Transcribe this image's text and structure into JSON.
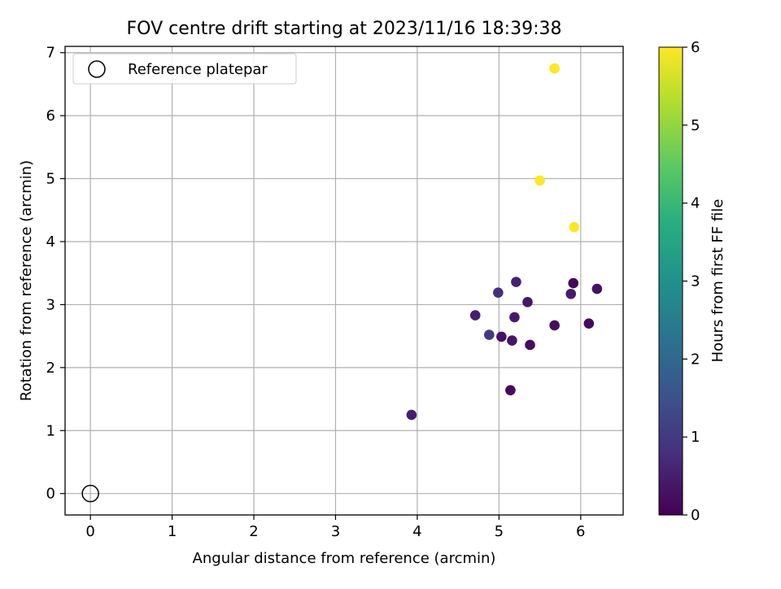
{
  "chart_data": {
    "type": "scatter",
    "title": "FOV centre drift starting at 2023/11/16 18:39:38",
    "xlabel": "Angular distance from reference (arcmin)",
    "ylabel": "Rotation from reference (arcmin)",
    "xlim": [
      -0.31,
      6.52
    ],
    "ylim": [
      -0.34,
      7.1
    ],
    "xticks": [
      0,
      1,
      2,
      3,
      4,
      5,
      6
    ],
    "yticks": [
      0,
      1,
      2,
      3,
      4,
      5,
      6,
      7
    ],
    "grid": true,
    "legend": {
      "position": "top-left",
      "entries": [
        "Reference platepar"
      ]
    },
    "reference": {
      "x": 0,
      "y": 0,
      "marker": "hollow-circle",
      "edge_color": "#000000"
    },
    "colorbar": {
      "label": "Hours from first FF file",
      "min": 0,
      "max": 6,
      "ticks": [
        0,
        1,
        2,
        3,
        4,
        5,
        6
      ],
      "colormap": "viridis"
    },
    "points": [
      {
        "x": 3.93,
        "y": 1.25,
        "hours": 0.5
      },
      {
        "x": 4.71,
        "y": 2.83,
        "hours": 0.5
      },
      {
        "x": 4.88,
        "y": 2.52,
        "hours": 1.0
      },
      {
        "x": 4.99,
        "y": 3.19,
        "hours": 0.8
      },
      {
        "x": 5.03,
        "y": 2.49,
        "hours": 0.3
      },
      {
        "x": 5.14,
        "y": 1.64,
        "hours": 0.15
      },
      {
        "x": 5.16,
        "y": 2.43,
        "hours": 0.35
      },
      {
        "x": 5.19,
        "y": 2.8,
        "hours": 0.45
      },
      {
        "x": 5.21,
        "y": 3.36,
        "hours": 0.55
      },
      {
        "x": 5.35,
        "y": 3.04,
        "hours": 0.4
      },
      {
        "x": 5.38,
        "y": 2.36,
        "hours": 0.2
      },
      {
        "x": 5.5,
        "y": 4.97,
        "hours": 6.0
      },
      {
        "x": 5.68,
        "y": 6.75,
        "hours": 6.0
      },
      {
        "x": 5.68,
        "y": 2.67,
        "hours": 0.2
      },
      {
        "x": 5.88,
        "y": 3.17,
        "hours": 0.45
      },
      {
        "x": 5.91,
        "y": 3.34,
        "hours": 0.1
      },
      {
        "x": 5.92,
        "y": 4.23,
        "hours": 6.0
      },
      {
        "x": 6.1,
        "y": 2.7,
        "hours": 0.15
      },
      {
        "x": 6.2,
        "y": 3.25,
        "hours": 0.3
      }
    ]
  }
}
